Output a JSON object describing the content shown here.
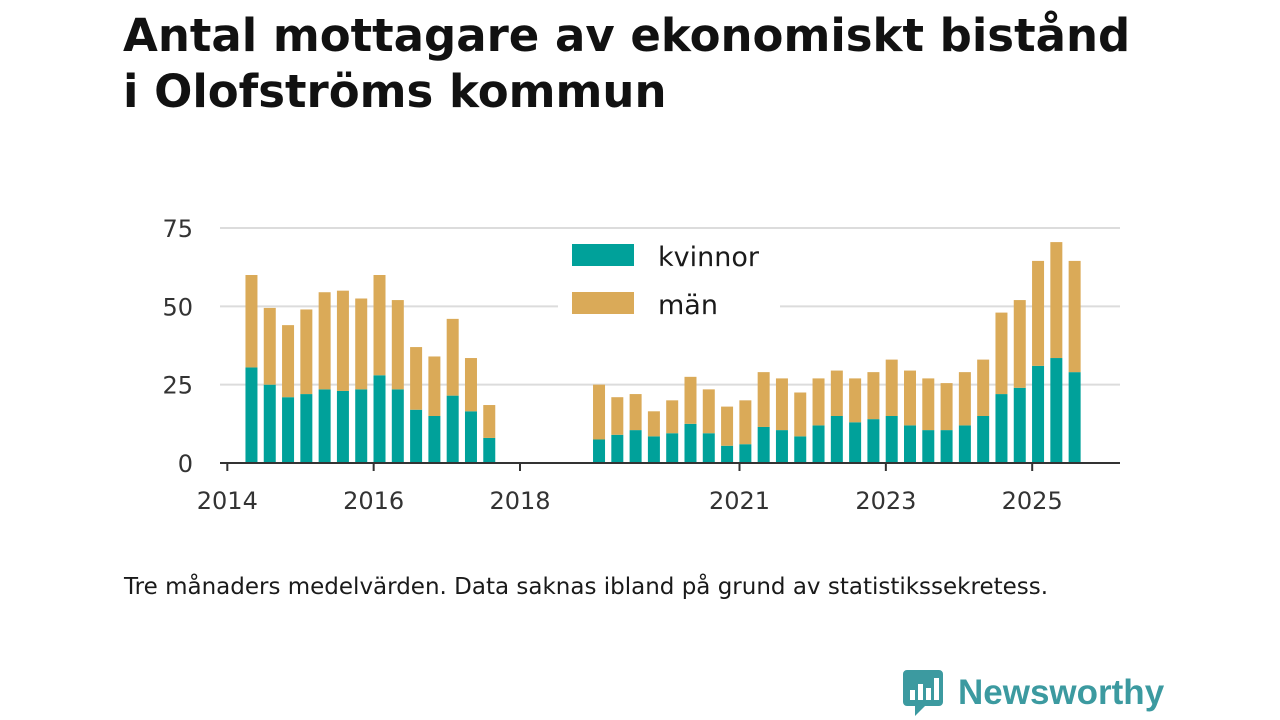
{
  "title_line1": "Antal mottagare av ekonomiskt bistånd",
  "title_line2": "i Olofströms kommun",
  "caption": "Tre månaders medelvärden. Data saknas ibland på grund av statistikssekretess.",
  "brand": {
    "name": "Newsworthy",
    "color": "#3c9aa0"
  },
  "chart_data": {
    "type": "bar",
    "stacked": true,
    "title": "Antal mottagare av ekonomiskt bistånd i Olofströms kommun",
    "xlabel": "",
    "ylabel": "",
    "ylim": [
      0,
      75
    ],
    "yticks": [
      0,
      25,
      50,
      75
    ],
    "ytick_labels": [
      "0",
      "25",
      "50",
      "75"
    ],
    "xlim": [
      2013.9,
      2026.2
    ],
    "xticks": [
      2014,
      2016,
      2018,
      2021,
      2023,
      2025
    ],
    "xtick_labels": [
      "2014",
      "2016",
      "2018",
      "2021",
      "2023",
      "2025"
    ],
    "grid": true,
    "legend_position": "top-center",
    "x": [
      2014.33,
      2014.58,
      2014.83,
      2015.08,
      2015.33,
      2015.58,
      2015.83,
      2016.08,
      2016.33,
      2016.58,
      2016.83,
      2017.08,
      2017.33,
      2017.58,
      2019.08,
      2019.33,
      2019.58,
      2019.83,
      2020.08,
      2020.33,
      2020.58,
      2020.83,
      2021.08,
      2021.33,
      2021.58,
      2021.83,
      2022.08,
      2022.33,
      2022.58,
      2022.83,
      2023.08,
      2023.33,
      2023.58,
      2023.83,
      2024.08,
      2024.33,
      2024.58,
      2024.83,
      2025.08,
      2025.33,
      2025.58
    ],
    "series": [
      {
        "name": "kvinnor",
        "color": "#00a19a",
        "values": [
          30.5,
          25,
          21,
          22,
          23.5,
          23,
          23.5,
          28,
          23.5,
          17,
          15,
          21.5,
          16.5,
          8,
          7.5,
          9,
          10.5,
          8.5,
          9.5,
          12.5,
          9.5,
          5.5,
          6,
          11.5,
          10.5,
          8.5,
          12,
          15,
          13,
          14,
          15,
          12,
          10.5,
          10.5,
          12,
          15,
          22,
          24,
          31,
          33.5,
          29
        ]
      },
      {
        "name": "män",
        "color": "#daaa58",
        "values": [
          29.5,
          24.5,
          23,
          27,
          31,
          32,
          29,
          32,
          28.5,
          20,
          19,
          24.5,
          17,
          10.5,
          17.5,
          12,
          11.5,
          8,
          10.5,
          15,
          14,
          12.5,
          14,
          17.5,
          16.5,
          14,
          15,
          14.5,
          14,
          15,
          18,
          17.5,
          16.5,
          15,
          17,
          18,
          26,
          28,
          33.5,
          37,
          35.5
        ]
      }
    ],
    "legend": [
      "kvinnor",
      "män"
    ]
  }
}
